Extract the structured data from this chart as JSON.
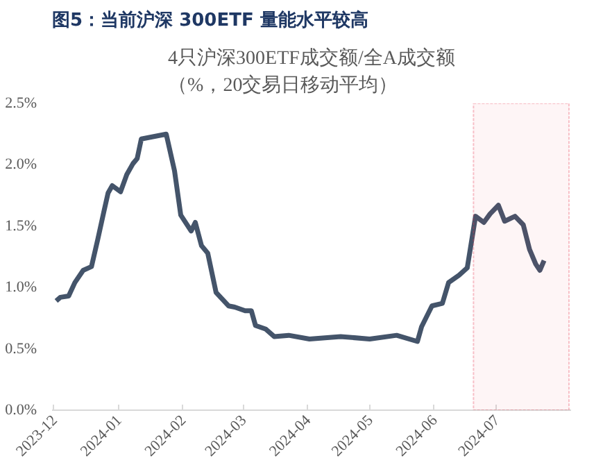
{
  "chart_data": {
    "type": "line",
    "title": "图5：当前沪深 300ETF 量能水平较高",
    "subtitle": "4只沪深300ETF成交额/全A成交额（%，20交易日移动平均）",
    "x": [
      "2023-12-02",
      "2023-12-04",
      "2023-12-08",
      "2023-12-11",
      "2023-12-15",
      "2023-12-19",
      "2023-12-22",
      "2023-12-25",
      "2023-12-27",
      "2023-12-29",
      "2024-01-02",
      "2024-01-05",
      "2024-01-08",
      "2024-01-10",
      "2024-01-12",
      "2024-01-24",
      "2024-01-28",
      "2024-01-31",
      "2024-02-05",
      "2024-02-07",
      "2024-02-10",
      "2024-02-13",
      "2024-02-17",
      "2024-02-23",
      "2024-02-26",
      "2024-03-02",
      "2024-03-05",
      "2024-03-07",
      "2024-03-12",
      "2024-03-16",
      "2024-03-23",
      "2024-04-02",
      "2024-04-17",
      "2024-05-01",
      "2024-05-14",
      "2024-05-24",
      "2024-05-26",
      "2024-05-31",
      "2024-06-05",
      "2024-06-08",
      "2024-06-13",
      "2024-06-17",
      "2024-06-21",
      "2024-06-25",
      "2024-06-28",
      "2024-07-02",
      "2024-07-05",
      "2024-07-10",
      "2024-07-14",
      "2024-07-17",
      "2024-07-20",
      "2024-07-22",
      "2024-07-24"
    ],
    "series": [
      {
        "color": "#44546a",
        "values": [
          0.89,
          0.92,
          0.93,
          1.04,
          1.14,
          1.17,
          1.39,
          1.62,
          1.77,
          1.83,
          1.78,
          1.92,
          2.01,
          2.05,
          2.21,
          2.25,
          1.95,
          1.59,
          1.46,
          1.53,
          1.34,
          1.28,
          0.96,
          0.85,
          0.84,
          0.81,
          0.81,
          0.69,
          0.66,
          0.6,
          0.61,
          0.58,
          0.6,
          0.58,
          0.61,
          0.56,
          0.68,
          0.85,
          0.87,
          1.04,
          1.1,
          1.16,
          1.58,
          1.53,
          1.6,
          1.67,
          1.54,
          1.58,
          1.51,
          1.31,
          1.19,
          1.14,
          1.22
        ]
      }
    ],
    "xlim": [
      "2023-11-30",
      "2024-08-06"
    ],
    "xticks": [
      "2023-12",
      "2024-01",
      "2024-02",
      "2024-03",
      "2024-04",
      "2024-05",
      "2024-06",
      "2024-07"
    ],
    "ylim": [
      0,
      2.5
    ],
    "yticks": [
      {
        "value": 0,
        "label": "0.0%"
      },
      {
        "value": 0.5,
        "label": "0.5%"
      },
      {
        "value": 1,
        "label": "1.0%"
      },
      {
        "value": 1.5,
        "label": "1.5%"
      },
      {
        "value": 2,
        "label": "2.0%"
      },
      {
        "value": 2.5,
        "label": "2.5%"
      }
    ],
    "bands": [
      {
        "axis": "x",
        "from": "2024-06-20",
        "to": "2024-08-05",
        "color": "#e8384f"
      }
    ],
    "grid": false,
    "marker": "none",
    "line_style": "solid"
  }
}
